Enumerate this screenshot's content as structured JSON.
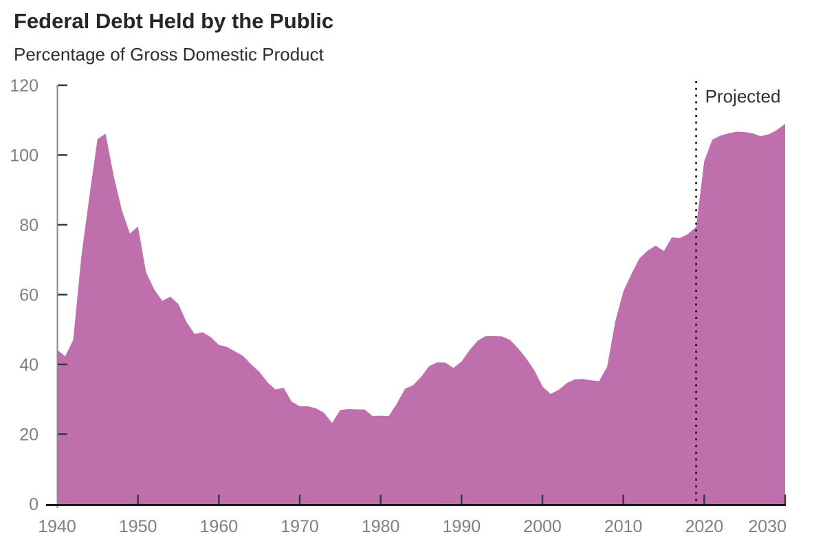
{
  "page": {
    "title": "Federal Debt Held by the Public",
    "subtitle": "Percentage of Gross Domestic Product"
  },
  "chart_data": {
    "type": "area",
    "title": "Federal Debt Held by the Public",
    "subtitle": "Percentage of Gross Domestic Product",
    "xlabel": "",
    "ylabel": "Percentage of Gross Domestic Product",
    "xlim": [
      1940,
      2030
    ],
    "ylim": [
      0,
      120
    ],
    "x_ticks": [
      1940,
      1950,
      1960,
      1970,
      1980,
      1990,
      2000,
      2010,
      2020,
      2030
    ],
    "y_ticks": [
      0,
      20,
      40,
      60,
      80,
      100,
      120
    ],
    "grid": false,
    "legend": null,
    "annotation": {
      "label": "Projected",
      "x": 2019,
      "style": "dotted-vertical-line"
    },
    "years": [
      1940,
      1941,
      1942,
      1943,
      1944,
      1945,
      1946,
      1947,
      1948,
      1949,
      1950,
      1951,
      1952,
      1953,
      1954,
      1955,
      1956,
      1957,
      1958,
      1959,
      1960,
      1961,
      1962,
      1963,
      1964,
      1965,
      1966,
      1967,
      1968,
      1969,
      1970,
      1971,
      1972,
      1973,
      1974,
      1975,
      1976,
      1977,
      1978,
      1979,
      1980,
      1981,
      1982,
      1983,
      1984,
      1985,
      1986,
      1987,
      1988,
      1989,
      1990,
      1991,
      1992,
      1993,
      1994,
      1995,
      1996,
      1997,
      1998,
      1999,
      2000,
      2001,
      2002,
      2003,
      2004,
      2005,
      2006,
      2007,
      2008,
      2009,
      2010,
      2011,
      2012,
      2013,
      2014,
      2015,
      2016,
      2017,
      2018,
      2019,
      2020,
      2021,
      2022,
      2023,
      2024,
      2025,
      2026,
      2027,
      2028,
      2029,
      2030
    ],
    "values": [
      44.2,
      42.3,
      47.0,
      70.9,
      88.3,
      104.6,
      106.1,
      94.0,
      84.3,
      77.5,
      79.5,
      66.4,
      61.5,
      58.2,
      59.4,
      57.3,
      52.1,
      48.7,
      49.2,
      47.8,
      45.6,
      45.0,
      43.7,
      42.4,
      40.0,
      37.9,
      34.9,
      32.8,
      33.3,
      29.3,
      28.0,
      28.0,
      27.4,
      26.1,
      23.2,
      26.9,
      27.2,
      27.1,
      27.1,
      25.2,
      25.3,
      25.2,
      28.7,
      33.0,
      34.0,
      36.4,
      39.5,
      40.6,
      40.5,
      39.0,
      40.8,
      44.1,
      46.8,
      48.1,
      48.1,
      48.0,
      47.0,
      44.6,
      41.7,
      38.3,
      33.7,
      31.5,
      32.7,
      34.6,
      35.7,
      35.8,
      35.4,
      35.2,
      39.3,
      52.3,
      60.9,
      65.9,
      70.4,
      72.6,
      74.0,
      72.5,
      76.4,
      76.2,
      77.4,
      79.4,
      98.2,
      104.4,
      105.6,
      106.2,
      106.7,
      106.6,
      106.2,
      105.4,
      106.0,
      107.2,
      108.9
    ],
    "colors": {
      "area": "#bf70ac",
      "x_axis": "#1a1a1a",
      "y_axis": "#8a8a8a",
      "tick_marks": "#3a3a3a",
      "axis_labels": "#808080",
      "projection_line": "#141414",
      "annotation_text": "#303030",
      "title_text": "#262626"
    }
  }
}
